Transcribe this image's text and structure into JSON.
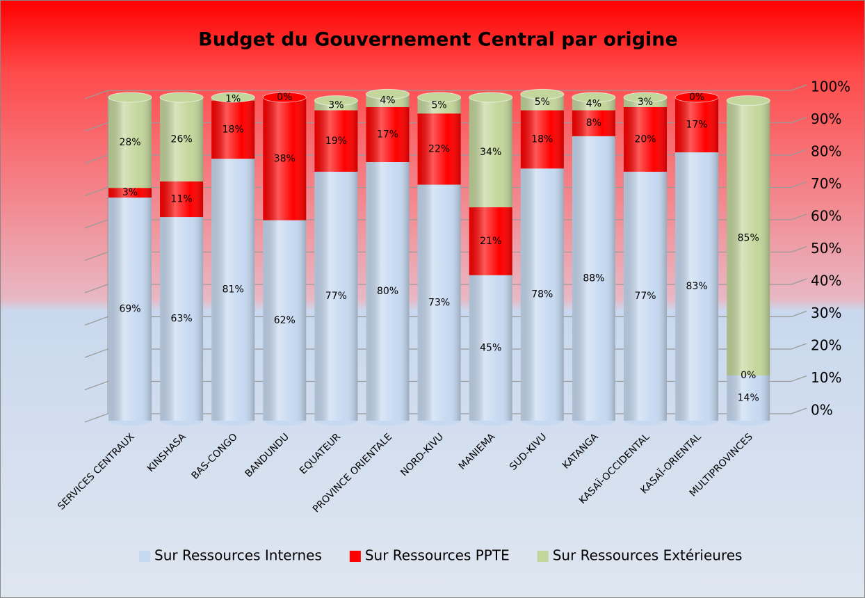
{
  "chart_data": {
    "type": "stacked_bar",
    "title": "Budget du Gouvernement Central par origine",
    "categories": [
      "SERVICES CENTRAUX",
      "KINSHASA",
      "BAS-CONGO",
      "BANDUNDU",
      "EQUATEUR",
      "PROVINCE ORIENTALE",
      "NORD-KIVU",
      "MANIEMA",
      "SUD-KIVU",
      "KATANGA",
      "KASAÏ-OCCIDENTAL",
      "KASAÏ-ORIENTAL",
      "MULTIPROVINCES"
    ],
    "series": [
      {
        "name": "Sur Ressources Internes",
        "color": "#c6d9f1",
        "values": [
          69,
          63,
          81,
          62,
          77,
          80,
          73,
          45,
          78,
          88,
          77,
          83,
          14
        ],
        "value_labels": [
          "69%",
          "63%",
          "81%",
          "62%",
          "77%",
          "80%",
          "73%",
          "45%",
          "78%",
          "88%",
          "77%",
          "83%",
          "14%"
        ]
      },
      {
        "name": "Sur Ressources PPTE",
        "color": "#ff0000",
        "values": [
          3,
          11,
          18,
          38,
          19,
          17,
          22,
          21,
          18,
          8,
          20,
          17,
          0
        ],
        "value_labels": [
          "3%",
          "11%",
          "18%",
          "38%",
          "19%",
          "17%",
          "22%",
          "21%",
          "18%",
          "8%",
          "20%",
          "17%",
          "0%"
        ]
      },
      {
        "name": "Sur Ressources Extérieures",
        "color": "#c3d69b",
        "values": [
          28,
          26,
          1,
          0,
          3,
          4,
          5,
          34,
          5,
          4,
          3,
          0,
          85
        ],
        "value_labels": [
          "28%",
          "26%",
          "1%",
          "0%",
          "3%",
          "4%",
          "5%",
          "34%",
          "5%",
          "4%",
          "3%",
          "0%",
          "85%"
        ]
      }
    ],
    "ylim": [
      0,
      100
    ],
    "yticks": [
      {
        "value": 0,
        "label": "0%"
      },
      {
        "value": 10,
        "label": "10%"
      },
      {
        "value": 20,
        "label": "20%"
      },
      {
        "value": 30,
        "label": "30%"
      },
      {
        "value": 40,
        "label": "40%"
      },
      {
        "value": 50,
        "label": "50%"
      },
      {
        "value": 60,
        "label": "60%"
      },
      {
        "value": 70,
        "label": "70%"
      },
      {
        "value": 80,
        "label": "80%"
      },
      {
        "value": 90,
        "label": "90%"
      },
      {
        "value": 100,
        "label": "100%"
      }
    ],
    "grid": true,
    "legend": "bottom"
  }
}
